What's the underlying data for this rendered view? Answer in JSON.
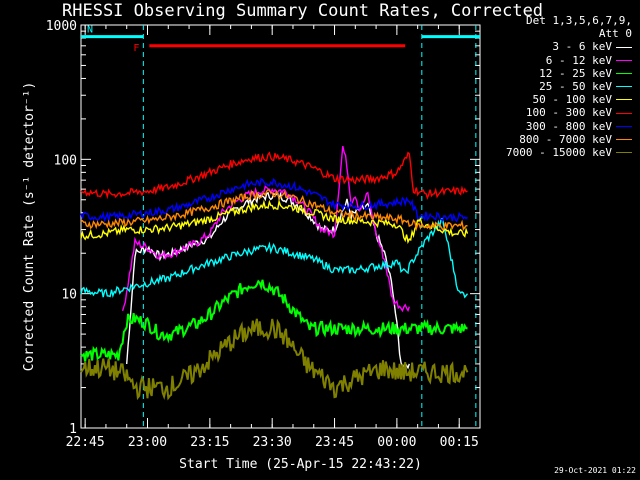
{
  "chart_data": {
    "type": "line",
    "title": "RHESSI Observing Summary Count Rates, Corrected",
    "xlabel": "Start Time (25-Apr-15 22:43:22)",
    "ylabel": "Corrected Count Rate (s⁻¹ detector⁻¹)",
    "yscale": "log",
    "ylim": [
      1,
      1000
    ],
    "xlim_minutes": [
      -1.0,
      95.0
    ],
    "xticks": [
      {
        "label": "22:45",
        "minute": 0
      },
      {
        "label": "23:00",
        "minute": 15
      },
      {
        "label": "23:15",
        "minute": 30
      },
      {
        "label": "23:30",
        "minute": 45
      },
      {
        "label": "23:45",
        "minute": 60
      },
      {
        "label": "00:00",
        "minute": 75
      },
      {
        "label": "00:15",
        "minute": 90
      }
    ],
    "yticks": [
      {
        "label": "1",
        "value": 1
      },
      {
        "label": "10",
        "value": 10
      },
      {
        "label": "100",
        "value": 100
      },
      {
        "label": "1000",
        "value": 1000
      }
    ],
    "legend_header": [
      "Det 1,3,5,6,7,9,",
      "Att 0"
    ],
    "series": [
      {
        "name": "3 - 6 keV",
        "color": "#ffffff",
        "x": [
          10,
          12,
          15,
          18,
          21,
          24,
          27,
          30,
          33,
          36,
          39,
          42,
          45,
          48,
          51,
          54,
          57,
          60,
          62,
          63,
          64,
          66,
          68,
          70,
          72,
          74,
          76,
          78
        ],
        "y": [
          3,
          20,
          22,
          19,
          20,
          22,
          24,
          26,
          35,
          42,
          48,
          52,
          54,
          52,
          46,
          38,
          30,
          30,
          42,
          48,
          38,
          42,
          45,
          28,
          20,
          11,
          3,
          3
        ]
      },
      {
        "name": "6 - 12 keV",
        "color": "#ff00ff",
        "x": [
          9,
          12,
          15,
          18,
          21,
          24,
          27,
          30,
          33,
          36,
          39,
          42,
          45,
          48,
          51,
          54,
          57,
          60,
          61,
          62,
          63,
          64,
          65,
          66,
          68,
          70,
          72,
          74,
          76,
          78
        ],
        "y": [
          7,
          24,
          22,
          19,
          20,
          22,
          24,
          28,
          40,
          48,
          54,
          58,
          60,
          58,
          50,
          40,
          30,
          28,
          60,
          125,
          90,
          48,
          55,
          42,
          55,
          28,
          18,
          9,
          8,
          8
        ]
      },
      {
        "name": "12 - 25 keV",
        "color": "#00ff00",
        "x": [
          -1,
          5,
          8,
          10,
          12,
          15,
          18,
          21,
          24,
          27,
          30,
          33,
          36,
          39,
          42,
          45,
          48,
          51,
          54,
          57,
          60,
          63,
          66,
          69,
          72,
          75,
          78,
          80,
          83,
          86,
          89,
          92
        ],
        "y": [
          3.5,
          3.5,
          3.5,
          6.3,
          6.5,
          6,
          5,
          5,
          5.5,
          6,
          7,
          8.5,
          10,
          11.5,
          12.5,
          11,
          9,
          7,
          5.5,
          5.5,
          5.5,
          5.5,
          5.5,
          5.5,
          5.5,
          5.5,
          5.5,
          5.5,
          5.5,
          5.5,
          5.5,
          5.5
        ]
      },
      {
        "name": "25 - 50 keV",
        "color": "#00ffff",
        "x": [
          -1,
          5,
          10,
          15,
          20,
          25,
          30,
          35,
          40,
          45,
          50,
          55,
          60,
          65,
          70,
          75,
          77,
          79,
          82,
          86,
          90,
          92
        ],
        "y": [
          10.5,
          10,
          11,
          12,
          13,
          15,
          17,
          19,
          21,
          22,
          20,
          18,
          15,
          15,
          16,
          17,
          14,
          18,
          25,
          35,
          10,
          10
        ]
      },
      {
        "name": "50 - 100 keV",
        "color": "#ffff00",
        "x": [
          -1,
          5,
          10,
          15,
          20,
          25,
          30,
          35,
          40,
          45,
          50,
          55,
          60,
          65,
          70,
          75,
          78,
          80,
          83,
          86,
          89,
          92
        ],
        "y": [
          27,
          28,
          30,
          30,
          31,
          33,
          36,
          40,
          44,
          46,
          44,
          40,
          36,
          35,
          34,
          33,
          24,
          35,
          32,
          30,
          28,
          28
        ]
      },
      {
        "name": "100 - 300 keV",
        "color": "#ff0000",
        "x": [
          -1,
          5,
          10,
          15,
          20,
          25,
          30,
          35,
          40,
          45,
          50,
          55,
          60,
          65,
          70,
          75,
          78,
          79,
          82,
          86,
          90,
          92
        ],
        "y": [
          58,
          55,
          56,
          58,
          62,
          70,
          80,
          92,
          102,
          105,
          98,
          86,
          72,
          70,
          72,
          80,
          110,
          60,
          55,
          57,
          58,
          58
        ]
      },
      {
        "name": "300 - 800 keV",
        "color": "#0000ff",
        "x": [
          -1,
          5,
          10,
          15,
          20,
          25,
          30,
          35,
          40,
          45,
          50,
          55,
          60,
          65,
          70,
          75,
          78,
          80,
          84,
          88,
          92
        ],
        "y": [
          38,
          37,
          38,
          40,
          42,
          46,
          52,
          60,
          66,
          68,
          63,
          55,
          46,
          45,
          46,
          48,
          50,
          38,
          38,
          37,
          37
        ]
      },
      {
        "name": "800 - 7000 keV",
        "color": "#ff8800",
        "x": [
          -1,
          5,
          10,
          15,
          20,
          25,
          30,
          35,
          40,
          45,
          50,
          55,
          60,
          65,
          70,
          75,
          78,
          80,
          84,
          88,
          92
        ],
        "y": [
          33,
          33,
          34,
          35,
          37,
          40,
          44,
          49,
          54,
          56,
          52,
          46,
          40,
          38,
          37,
          36,
          34,
          32,
          32,
          32,
          32
        ]
      },
      {
        "name": "7000 - 15000 keV",
        "color": "#808000",
        "x": [
          -1,
          5,
          8,
          10,
          12,
          15,
          20,
          25,
          30,
          35,
          40,
          45,
          48,
          51,
          54,
          57,
          60,
          63,
          66,
          69,
          72,
          75,
          78,
          81,
          84,
          87,
          90,
          92
        ],
        "y": [
          2.8,
          2.8,
          2.6,
          2.4,
          2.0,
          2.0,
          2.0,
          2.4,
          3.2,
          4.4,
          5.4,
          5.6,
          4.8,
          3.6,
          2.8,
          2.4,
          2.0,
          2.2,
          2.4,
          2.6,
          2.8,
          2.6,
          2.6,
          2.6,
          2.6,
          2.6,
          2.6,
          2.6
        ]
      }
    ],
    "flags": [
      {
        "label": "F",
        "color": "#ff0000",
        "y": 700,
        "x0": 14,
        "x1": 77
      },
      {
        "label": "N",
        "color": "#00ffff",
        "y": 820,
        "x0": -1,
        "x1": 14
      }
    ],
    "flag_line_after": {
      "color": "#00ffff",
      "y": 820,
      "x0": 81,
      "x1": 95
    },
    "vlines": [
      {
        "color": "#00ffff",
        "minute": 14
      },
      {
        "color": "#00ffff",
        "minute": 81
      },
      {
        "color": "#00ffff",
        "minute": 94
      }
    ],
    "grid": false,
    "legend_position": "right"
  },
  "footer_date": "29-Oct-2021 01:22"
}
